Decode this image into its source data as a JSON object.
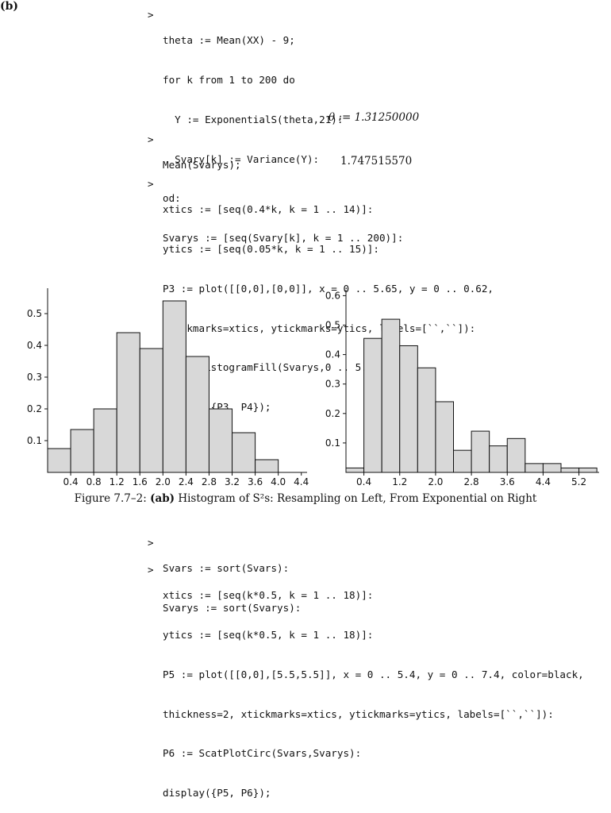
{
  "part_label": "(b)",
  "prompt": ">",
  "block1": {
    "lines": [
      "theta := Mean(XX) - 9;",
      "for k from 1 to 200 do",
      "  Y := ExponentialS(theta,21):",
      "  Svary[k] := Variance(Y):",
      "od:",
      "Svarys := [seq(Svary[k], k = 1 .. 200)]:"
    ],
    "output": "θ := 1.31250000"
  },
  "block2": {
    "lines": [
      "Mean(Svarys);"
    ],
    "output": "1.747515570"
  },
  "block3": {
    "lines": [
      "xtics := [seq(0.4*k, k = 1 .. 14)]:",
      "ytics := [seq(0.05*k, k = 1 .. 15)]:",
      "P3 := plot([[0,0],[0,0]], x = 0 .. 5.65, y = 0 .. 0.62,",
      "xtickmarks=xtics, ytickmarks=ytics, labels=[``,``]):",
      "P4 := HistogramFill(Svarys,0 .. 5.6, 14):",
      "display({P3, P4});"
    ]
  },
  "caption": {
    "prefix": "Figure 7.7–2: ",
    "bold": "(ab)",
    "text": " Histogram of S²s: Resampling on Left, From Exponential on Right"
  },
  "block4": {
    "lines": [
      "Svars := sort(Svars):",
      "Svarys := sort(Svarys):"
    ]
  },
  "block5": {
    "lines": [
      "xtics := [seq(k*0.5, k = 1 .. 18)]:",
      "ytics := [seq(k*0.5, k = 1 .. 18)]:",
      "P5 := plot([[0,0],[5.5,5.5]], x = 0 .. 5.4, y = 0 .. 7.4, color=black,",
      "thickness=2, xtickmarks=xtics, ytickmarks=ytics, labels=[``,``]):",
      "P6 := ScatPlotCirc(Svars,Svarys):",
      "display({P5, P6});"
    ]
  },
  "chart_data": [
    {
      "type": "bar",
      "edges": [
        0,
        0.4,
        0.8,
        1.2,
        1.6,
        2.0,
        2.4,
        2.8,
        3.2,
        3.6,
        4.0
      ],
      "values": [
        0.075,
        0.135,
        0.2,
        0.44,
        0.39,
        0.54,
        0.365,
        0.2,
        0.125,
        0.04
      ],
      "xlim": [
        0,
        4.5
      ],
      "ylim": [
        0,
        0.58
      ],
      "xticks": [
        "0.4",
        "0.8",
        "1.2",
        "1.6",
        "2.0",
        "2.4",
        "2.8",
        "3.2",
        "3.6",
        "4.0",
        "4.4"
      ],
      "xtick_values": [
        0.4,
        0.8,
        1.2,
        1.6,
        2.0,
        2.4,
        2.8,
        3.2,
        3.6,
        4.0,
        4.4
      ],
      "yticks": [
        "0.1",
        "0.2",
        "0.3",
        "0.4",
        "0.5"
      ],
      "ytick_values": [
        0.1,
        0.2,
        0.3,
        0.4,
        0.5
      ],
      "fill": "#d8d8d8"
    },
    {
      "type": "bar",
      "edges": [
        0,
        0.4,
        0.8,
        1.2,
        1.6,
        2.0,
        2.4,
        2.8,
        3.2,
        3.6,
        4.0,
        4.4,
        4.8,
        5.2,
        5.6
      ],
      "values": [
        0.015,
        0.455,
        0.52,
        0.43,
        0.355,
        0.24,
        0.075,
        0.14,
        0.09,
        0.115,
        0.03,
        0.03,
        0.015,
        0.015
      ],
      "xlim": [
        0,
        5.65
      ],
      "ylim": [
        0,
        0.62
      ],
      "xticks": [
        "0.4",
        "1.2",
        "2.0",
        "2.8",
        "3.6",
        "4.4",
        "5.2"
      ],
      "xtick_values": [
        0.4,
        1.2,
        2.0,
        2.8,
        3.6,
        4.4,
        5.2
      ],
      "yticks": [
        "0.1",
        "0.2",
        "0.3",
        "0.4",
        "0.5",
        "0.6"
      ],
      "ytick_values": [
        0.1,
        0.2,
        0.3,
        0.4,
        0.5,
        0.6
      ],
      "fill": "#d8d8d8"
    }
  ]
}
